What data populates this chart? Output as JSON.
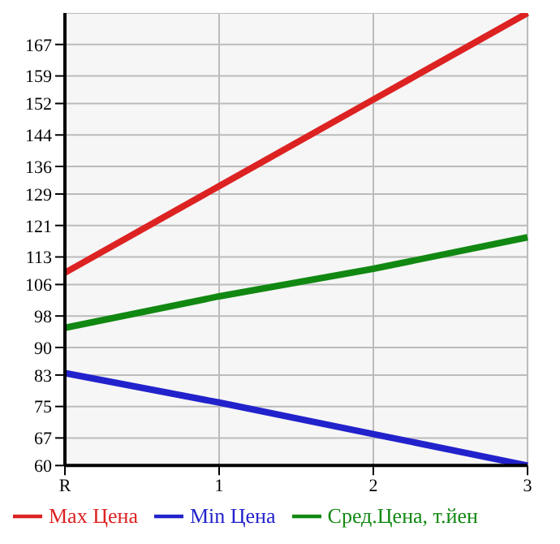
{
  "chart_data": {
    "type": "line",
    "categories": [
      "R",
      "1",
      "2",
      "3"
    ],
    "series": [
      {
        "name": "Max Цена",
        "color": "#dd2222",
        "values": [
          109,
          131,
          153,
          175
        ]
      },
      {
        "name": "Min Цена",
        "color": "#2222cc",
        "values": [
          83.5,
          76,
          68,
          60
        ]
      },
      {
        "name": "Сред.Цена, т.йен",
        "color": "#118811",
        "values": [
          95,
          103,
          110,
          118
        ]
      }
    ],
    "ylim": [
      60,
      175
    ],
    "yticks": [
      60,
      67,
      75,
      83,
      90,
      98,
      106,
      113,
      121,
      129,
      136,
      144,
      152,
      159,
      167
    ],
    "grid": true,
    "legend": "bottom",
    "marker": "none",
    "line_style": "solid"
  }
}
